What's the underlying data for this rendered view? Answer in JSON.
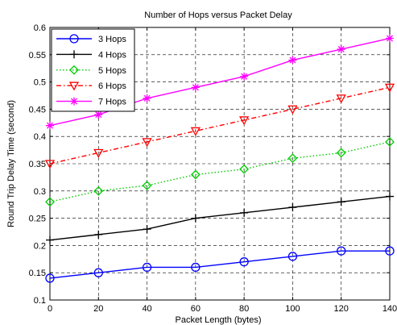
{
  "chart_data": {
    "type": "line",
    "title": "Number of Hops versus Packet Delay",
    "xlabel": "Packet Length  (bytes)",
    "ylabel": "Round Trip Delay Time  (second)",
    "xlim": [
      0,
      140
    ],
    "ylim": [
      0.1,
      0.6
    ],
    "xticks": [
      0,
      20,
      40,
      60,
      80,
      100,
      120,
      140
    ],
    "yticks": [
      0.1,
      0.15,
      0.2,
      0.25,
      0.3,
      0.35,
      0.4,
      0.45,
      0.5,
      0.55,
      0.6
    ],
    "grid": true,
    "legend_position": "top-left",
    "x": [
      0,
      20,
      40,
      60,
      80,
      100,
      120,
      140
    ],
    "series": [
      {
        "name": "3 Hops",
        "values": [
          0.14,
          0.15,
          0.16,
          0.16,
          0.17,
          0.18,
          0.19,
          0.19
        ],
        "color": "#0000ff",
        "marker": "circle",
        "line": "solid"
      },
      {
        "name": "4 Hops",
        "values": [
          0.21,
          0.22,
          0.23,
          0.25,
          0.26,
          0.27,
          0.28,
          0.29
        ],
        "color": "#000000",
        "marker": "plus",
        "line": "solid"
      },
      {
        "name": "5 Hops",
        "values": [
          0.28,
          0.3,
          0.31,
          0.33,
          0.34,
          0.36,
          0.37,
          0.39
        ],
        "color": "#00cc00",
        "marker": "diamond",
        "line": "dotted"
      },
      {
        "name": "6 Hops",
        "values": [
          0.35,
          0.37,
          0.39,
          0.41,
          0.43,
          0.45,
          0.47,
          0.49
        ],
        "color": "#ff0000",
        "marker": "triangle-down",
        "line": "dashdot"
      },
      {
        "name": "7 Hops",
        "values": [
          0.42,
          0.44,
          0.47,
          0.49,
          0.51,
          0.54,
          0.56,
          0.58
        ],
        "color": "#ff00ff",
        "marker": "star",
        "line": "solid"
      }
    ]
  }
}
